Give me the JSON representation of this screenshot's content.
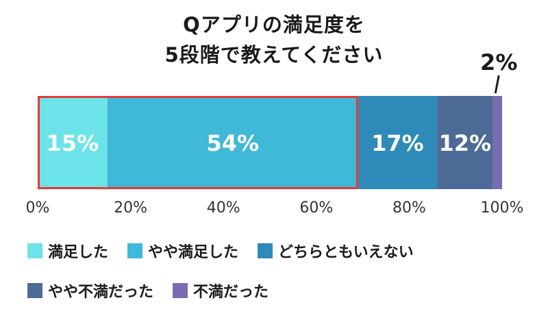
{
  "chart_data": {
    "type": "bar",
    "orientation": "horizontal-stacked-100",
    "title_lines": [
      "Qアプリの満足度を",
      "5段階で教えてください"
    ],
    "xlim": [
      0,
      100
    ],
    "x_ticks": [
      "0%",
      "20%",
      "40%",
      "60%",
      "80%",
      "100%"
    ],
    "series": [
      {
        "name": "満足した",
        "value": 15,
        "label": "15%",
        "color": "#6ce3e8"
      },
      {
        "name": "やや満足した",
        "value": 54,
        "label": "54%",
        "color": "#40b8d8"
      },
      {
        "name": "どちらともいえない",
        "value": 17,
        "label": "17%",
        "color": "#2e8ab8"
      },
      {
        "name": "やや不満だった",
        "value": 12,
        "label": "12%",
        "color": "#4d6b96"
      },
      {
        "name": "不満だった",
        "value": 2,
        "label": "2%",
        "color": "#7b6bb0"
      }
    ],
    "highlight": {
      "from": 0,
      "to": 69,
      "color": "#e53935"
    },
    "legend_position": "bottom",
    "grid": false
  }
}
